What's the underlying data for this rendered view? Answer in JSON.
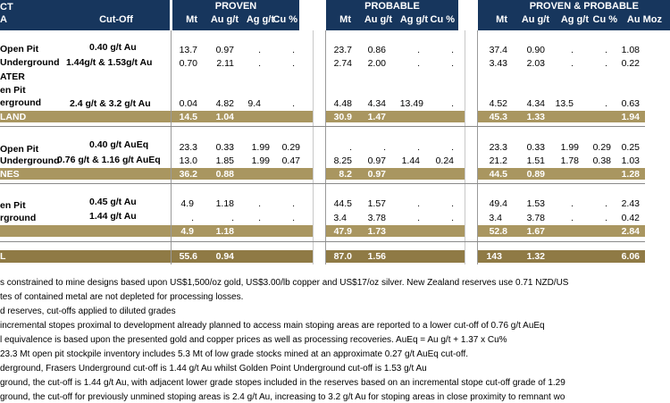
{
  "header": {
    "left_partial": "CT",
    "subleft_partial": "A",
    "cutoff": "Cut-Off",
    "proven": {
      "title": "PROVEN",
      "cols": [
        "Mt",
        "Au g/t",
        "Ag g/t",
        "Cu %"
      ]
    },
    "probable": {
      "title": "PROBABLE",
      "cols": [
        "Mt",
        "Au g/t",
        "Ag g/t",
        "Cu %"
      ]
    },
    "pp": {
      "title": "PROVEN & PROBABLE",
      "cols": [
        "Mt",
        "Au g/t",
        "Ag g/t",
        "Cu %",
        "Au Moz"
      ]
    }
  },
  "rows": {
    "r1": {
      "label": "Open Pit",
      "cutoff": "0.40 g/t Au",
      "pv": [
        "13.7",
        "0.97",
        ".",
        "."
      ],
      "pb": [
        "23.7",
        "0.86",
        ".",
        "."
      ],
      "pp": [
        "37.4",
        "0.90",
        ".",
        ".",
        "1.08"
      ]
    },
    "r2": {
      "label": "Underground",
      "cutoff": "1.44g/t & 1.53g/t Au",
      "pv": [
        "0.70",
        "2.11",
        ".",
        "."
      ],
      "pb": [
        "2.74",
        "2.00",
        ".",
        "."
      ],
      "pp": [
        "3.43",
        "2.03",
        ".",
        ".",
        "0.22"
      ]
    },
    "r3": {
      "label1": "ATER",
      "label2": "en Pit",
      "label3": "erground",
      "cutoff": "2.4 g/t & 3.2 g/t Au",
      "pv": [
        "0.04",
        "4.82",
        "9.4",
        "."
      ],
      "pb": [
        "4.48",
        "4.34",
        "13.49",
        "."
      ],
      "pp": [
        "4.52",
        "4.34",
        "13.5",
        ".",
        "0.63"
      ]
    },
    "t1": {
      "label": "LAND",
      "pv": [
        "14.5",
        "1.04"
      ],
      "pb": [
        "30.9",
        "1.47"
      ],
      "pp": [
        "45.3",
        "1.33",
        "1.94"
      ]
    },
    "r4": {
      "label": "Open Pit",
      "cutoff": "0.40 g/t AuEq",
      "pv": [
        "23.3",
        "0.33",
        "1.99",
        "0.29"
      ],
      "pb": [
        ".",
        ".",
        ".",
        "."
      ],
      "pp": [
        "23.3",
        "0.33",
        "1.99",
        "0.29",
        "0.25"
      ]
    },
    "r5": {
      "label": "Underground",
      "cutoff": "0.76 g/t & 1.16 g/t AuEq",
      "pv": [
        "13.0",
        "1.85",
        "1.99",
        "0.47"
      ],
      "pb": [
        "8.25",
        "0.97",
        "1.44",
        "0.24"
      ],
      "pp": [
        "21.2",
        "1.51",
        "1.78",
        "0.38",
        "1.03"
      ]
    },
    "t2": {
      "label": "NES",
      "pv": [
        "36.2",
        "0.88"
      ],
      "pb": [
        "8.2",
        "0.97"
      ],
      "pp": [
        "44.5",
        "0.89",
        "1.28"
      ]
    },
    "r6": {
      "label": "en Pit",
      "cutoff": "0.45 g/t Au",
      "pv": [
        "4.9",
        "1.18",
        ".",
        "."
      ],
      "pb": [
        "44.5",
        "1.57",
        ".",
        "."
      ],
      "pp": [
        "49.4",
        "1.53",
        ".",
        ".",
        "2.43"
      ]
    },
    "r7": {
      "label": "rground",
      "cutoff": "1.44 g/t Au",
      "pv": [
        ".",
        ".",
        ".",
        "."
      ],
      "pb": [
        "3.4",
        "3.78",
        ".",
        "."
      ],
      "pp": [
        "3.4",
        "3.78",
        ".",
        ".",
        "0.42"
      ]
    },
    "t3": {
      "pv": [
        "4.9",
        "1.18"
      ],
      "pb": [
        "47.9",
        "1.73"
      ],
      "pp": [
        "52.8",
        "1.67",
        "2.84"
      ]
    },
    "grand": {
      "label": "L",
      "pv": [
        "55.6",
        "0.94"
      ],
      "pb": [
        "87.0",
        "1.56"
      ],
      "pp": [
        "143",
        "1.32",
        "6.06"
      ]
    }
  },
  "notes": [
    "s constrained to mine designs based upon US$1,500/oz gold, US$3.00/lb copper and US$17/oz silver. New Zealand reserves use 0.71 NZD/US",
    "tes of contained metal are not depleted for processing losses.",
    "d reserves, cut-offs applied to diluted grades",
    "incremental stopes proximal to development already planned to access main stoping areas are reported to a lower cut-off of 0.76 g/t AuEq",
    "l equivalence is based upon the presented gold and copper prices as well as processing recoveries. AuEq = Au g/t + 1.37 x Cu%",
    "23.3 Mt open pit stockpile inventory includes 5.3 Mt of low grade stocks mined at an approximate 0.27 g/t AuEq cut-off.",
    "derground, Frasers Underground cut-off is 1.44 g/t Au whilst Golden Point Underground cut-off is 1.53 g/t Au",
    "ground, the cut-off is 1.44 g/t Au, with adjacent lower grade stopes included in the reserves based on an incremental stope cut-off grade of 1.29",
    "ground, the cut-off for previously unmined stoping areas is 2.4 g/t Au, increasing to 3.2 g/t Au for stoping areas in close proximity to remnant wo"
  ]
}
